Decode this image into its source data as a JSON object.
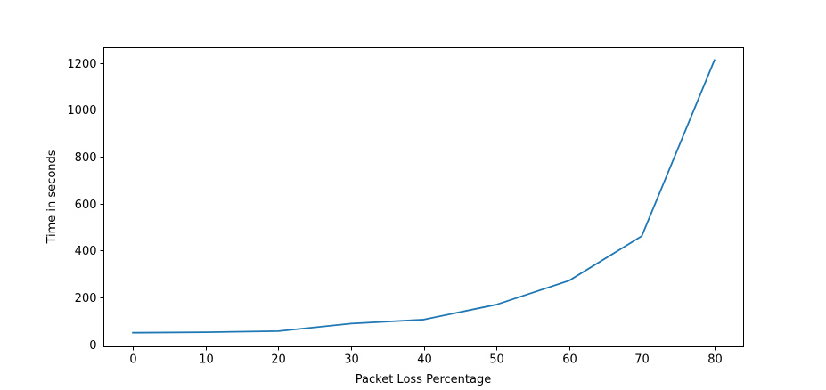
{
  "chart_data": {
    "type": "line",
    "title": "",
    "xlabel": "Packet Loss Percentage",
    "ylabel": "Time in seconds",
    "xlim": [
      -4,
      84
    ],
    "ylim": [
      -10,
      1265
    ],
    "xticks": [
      0,
      10,
      20,
      30,
      40,
      50,
      60,
      70,
      80
    ],
    "yticks": [
      0,
      200,
      400,
      600,
      800,
      1000,
      1200
    ],
    "grid": false,
    "legend": "none",
    "series": [
      {
        "color": "#1f77b4",
        "x": [
          0,
          10,
          20,
          30,
          40,
          50,
          60,
          70,
          80
        ],
        "y": [
          50,
          52,
          57,
          89,
          106,
          170,
          272,
          462,
          1212
        ]
      }
    ]
  }
}
